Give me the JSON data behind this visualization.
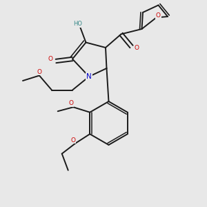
{
  "bg": "#e8e8e8",
  "bc": "#1a1a1a",
  "nc": "#0000cc",
  "oc": "#cc0000",
  "hoc": "#3a8a8a",
  "lw": 1.4,
  "lw2": 1.1,
  "fs": 6.5,
  "figsize": [
    3.0,
    3.0
  ],
  "dpi": 100,
  "xlim": [
    0,
    10
  ],
  "ylim": [
    0,
    10
  ]
}
